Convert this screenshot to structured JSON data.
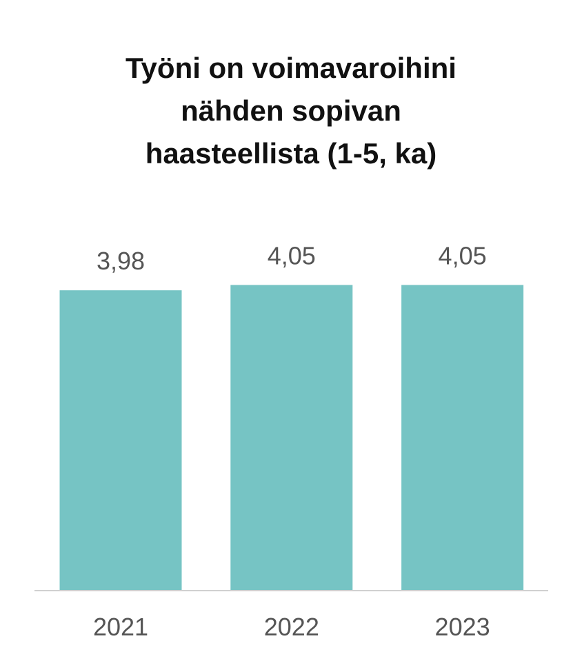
{
  "chart_data": {
    "type": "bar",
    "title": "Työni on voimavaroihini nähden sopivan haasteellista (1-5, ka)",
    "categories": [
      "2021",
      "2022",
      "2023"
    ],
    "values": [
      3.98,
      4.05,
      4.05
    ],
    "value_labels": [
      "3,98",
      "4,05",
      "4,05"
    ],
    "color": "#76c4c4"
  }
}
